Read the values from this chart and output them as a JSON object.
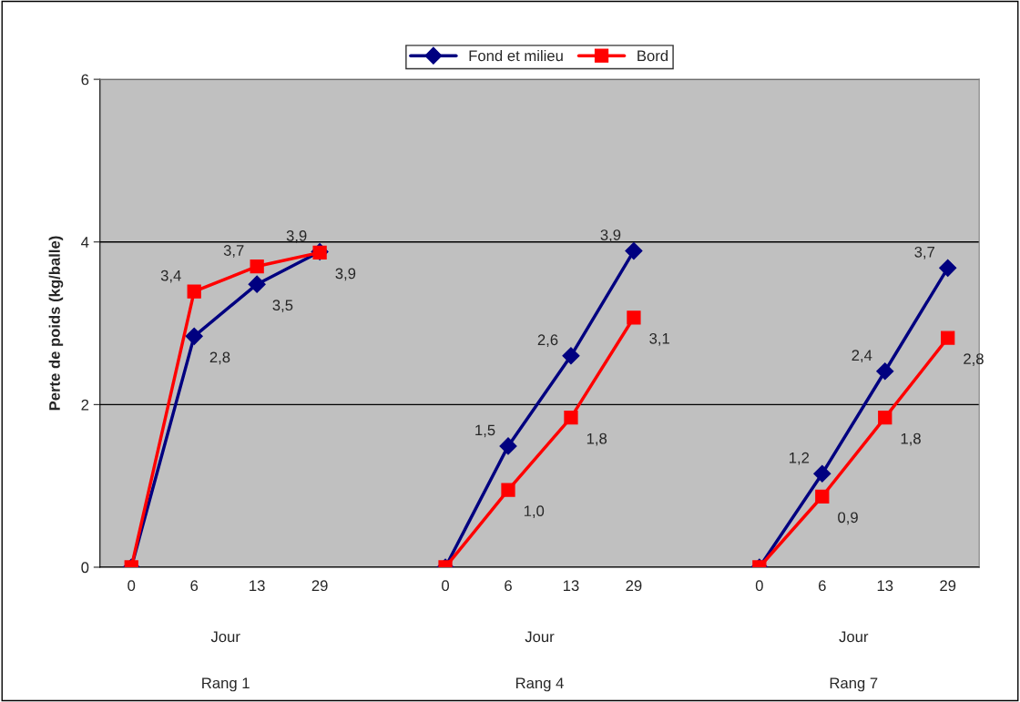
{
  "chart_data": {
    "type": "line",
    "ylabel": "Perte de poids (kg/balle)",
    "categories": [
      "0",
      "6",
      "13",
      "29",
      null,
      "0",
      "6",
      "13",
      "29",
      null,
      "0",
      "6",
      "13",
      "29"
    ],
    "series": [
      {
        "name": "Fond et milieu",
        "color": "#000080",
        "marker": "diamond",
        "values": [
          0,
          2.84,
          3.48,
          3.88,
          null,
          0,
          1.49,
          2.6,
          3.89,
          null,
          0,
          1.15,
          2.41,
          3.68
        ],
        "value_labels": [
          null,
          "2,8",
          "3,5",
          "3,9",
          null,
          null,
          "1,5",
          "2,6",
          "3,9",
          null,
          null,
          "1,2",
          "2,4",
          "3,7"
        ]
      },
      {
        "name": "Bord",
        "color": "#ff0000",
        "marker": "square",
        "values": [
          0,
          3.39,
          3.7,
          3.87,
          null,
          0,
          0.95,
          1.84,
          3.07,
          null,
          0,
          0.87,
          1.84,
          2.82
        ],
        "value_labels": [
          null,
          "3,4",
          "3,7",
          "3,9",
          null,
          null,
          "1,0",
          "1,8",
          "3,1",
          null,
          null,
          "0,9",
          "1,8",
          "2,8"
        ]
      }
    ],
    "annotations": [
      "Jour",
      "Jour",
      "Jour",
      "Rang 1",
      "Rang 4",
      "Rang 7"
    ],
    "ylim": [
      0,
      6
    ],
    "yticks": [
      0,
      2,
      4,
      6
    ],
    "grid": "y",
    "legend": "top"
  }
}
